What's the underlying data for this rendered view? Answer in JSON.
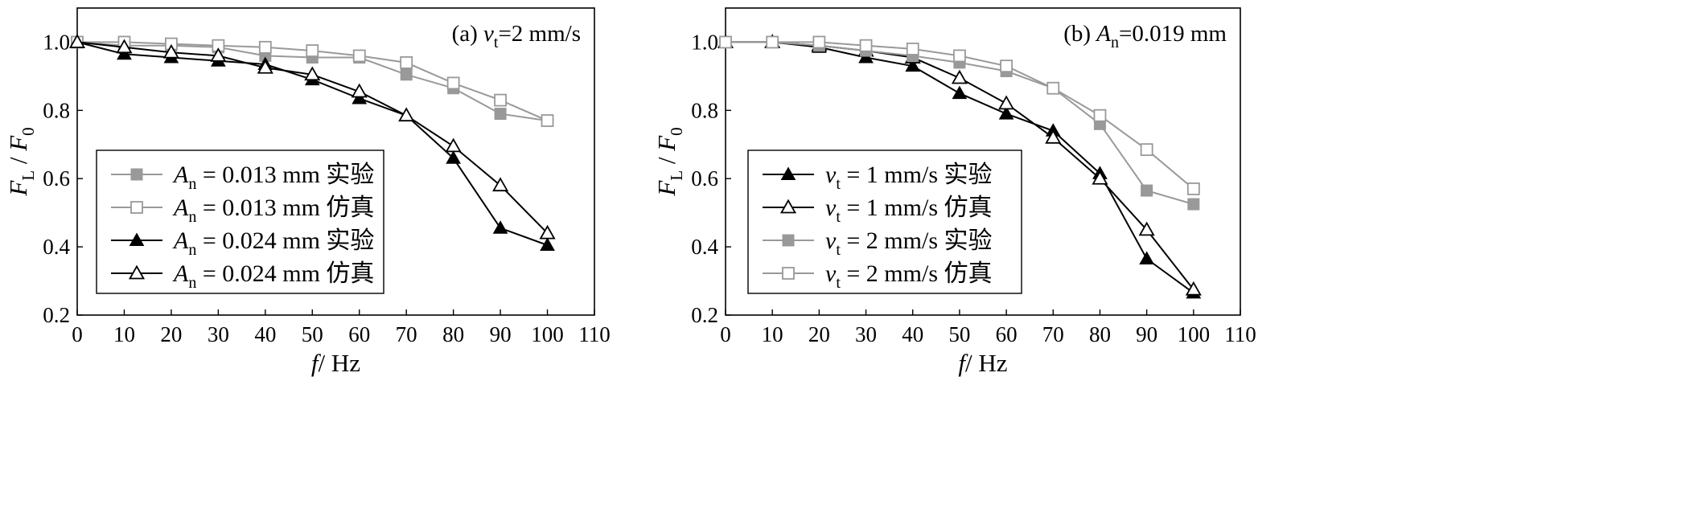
{
  "chart_data": [
    {
      "type": "line",
      "panel_label": {
        "prefix": "(a) ",
        "var": "v",
        "sub": "t",
        "rest": "=2 mm/s"
      },
      "xlabel": {
        "var": "f",
        "rest": "/ Hz"
      },
      "ylabel": {
        "var": "F",
        "sub": "L",
        "sep": " / ",
        "var2": "F",
        "sub2": "0"
      },
      "xlim": [
        0,
        110
      ],
      "ylim": [
        0.2,
        1.1
      ],
      "xticks": [
        0,
        10,
        20,
        30,
        40,
        50,
        60,
        70,
        80,
        90,
        100,
        110
      ],
      "xtick_labels": [
        "0",
        "10",
        "20",
        "30",
        "40",
        "50",
        "60",
        "70",
        "80",
        "90",
        "100",
        "110"
      ],
      "yticks": [
        0.2,
        0.4,
        0.6,
        0.8,
        1.0
      ],
      "ytick_labels": [
        "0.2",
        "0.4",
        "0.6",
        "0.8",
        "1.0"
      ],
      "grid": false,
      "legend_position": "bottom-left",
      "series": [
        {
          "legend": {
            "var": "A",
            "sub": "n",
            "rest": " = 0.013 mm 实验"
          },
          "color": "#999999",
          "marker": "filled-square",
          "x": [
            0,
            10,
            20,
            30,
            40,
            50,
            60,
            70,
            80,
            90,
            100
          ],
          "y": [
            1.0,
            0.99,
            0.99,
            0.985,
            0.96,
            0.955,
            0.955,
            0.905,
            0.865,
            0.79,
            0.77
          ]
        },
        {
          "legend": {
            "var": "A",
            "sub": "n",
            "rest": " = 0.013 mm 仿真"
          },
          "color": "#999999",
          "marker": "open-square",
          "x": [
            0,
            10,
            20,
            30,
            40,
            50,
            60,
            70,
            80,
            90,
            100
          ],
          "y": [
            1.0,
            1.0,
            0.995,
            0.99,
            0.985,
            0.975,
            0.96,
            0.94,
            0.88,
            0.83,
            0.77
          ]
        },
        {
          "legend": {
            "var": "A",
            "sub": "n",
            "rest": " = 0.024 mm 实验"
          },
          "color": "#000000",
          "marker": "filled-triangle",
          "x": [
            0,
            10,
            20,
            30,
            40,
            50,
            60,
            70,
            80,
            90,
            100
          ],
          "y": [
            1.0,
            0.965,
            0.955,
            0.945,
            0.935,
            0.89,
            0.835,
            0.785,
            0.66,
            0.455,
            0.405
          ]
        },
        {
          "legend": {
            "var": "A",
            "sub": "n",
            "rest": " = 0.024 mm 仿真"
          },
          "color": "#000000",
          "marker": "open-triangle",
          "x": [
            0,
            10,
            20,
            30,
            40,
            50,
            60,
            70,
            80,
            90,
            100
          ],
          "y": [
            1.0,
            0.985,
            0.97,
            0.96,
            0.925,
            0.905,
            0.855,
            0.785,
            0.695,
            0.58,
            0.44
          ]
        }
      ]
    },
    {
      "type": "line",
      "panel_label": {
        "prefix": "(b) ",
        "var": "A",
        "sub": "n",
        "rest": "=0.019 mm"
      },
      "xlabel": {
        "var": "f",
        "rest": "/ Hz"
      },
      "ylabel": {
        "var": "F",
        "sub": "L",
        "sep": " / ",
        "var2": "F",
        "sub2": "0"
      },
      "xlim": [
        0,
        110
      ],
      "ylim": [
        0.2,
        1.1
      ],
      "xticks": [
        0,
        10,
        20,
        30,
        40,
        50,
        60,
        70,
        80,
        90,
        100,
        110
      ],
      "xtick_labels": [
        "0",
        "10",
        "20",
        "30",
        "40",
        "50",
        "60",
        "70",
        "80",
        "90",
        "100",
        "110"
      ],
      "yticks": [
        0.2,
        0.4,
        0.6,
        0.8,
        1.0
      ],
      "ytick_labels": [
        "0.2",
        "0.4",
        "0.6",
        "0.8",
        "1.0"
      ],
      "grid": false,
      "legend_position": "bottom-left",
      "series": [
        {
          "legend": {
            "var": "v",
            "sub": "t",
            "rest": " = 1 mm/s 实验"
          },
          "color": "#000000",
          "marker": "filled-triangle",
          "x": [
            0,
            10,
            20,
            30,
            40,
            50,
            60,
            70,
            80,
            90,
            100
          ],
          "y": [
            1.0,
            1.0,
            0.985,
            0.955,
            0.93,
            0.85,
            0.79,
            0.74,
            0.615,
            0.365,
            0.265
          ]
        },
        {
          "legend": {
            "var": "v",
            "sub": "t",
            "rest": " = 1 mm/s 仿真"
          },
          "color": "#000000",
          "marker": "open-triangle",
          "x": [
            0,
            10,
            20,
            30,
            40,
            50,
            60,
            70,
            80,
            90,
            100
          ],
          "y": [
            1.0,
            1.0,
            0.99,
            0.975,
            0.955,
            0.895,
            0.82,
            0.72,
            0.6,
            0.45,
            0.275
          ]
        },
        {
          "legend": {
            "var": "v",
            "sub": "t",
            "rest": " = 2 mm/s 实验"
          },
          "color": "#999999",
          "marker": "filled-square",
          "x": [
            0,
            10,
            20,
            30,
            40,
            50,
            60,
            70,
            80,
            90,
            100
          ],
          "y": [
            1.0,
            1.0,
            0.99,
            0.975,
            0.96,
            0.94,
            0.915,
            0.865,
            0.76,
            0.565,
            0.525
          ]
        },
        {
          "legend": {
            "var": "v",
            "sub": "t",
            "rest": " = 2 mm/s 仿真"
          },
          "color": "#999999",
          "marker": "open-square",
          "x": [
            0,
            10,
            20,
            30,
            40,
            50,
            60,
            70,
            80,
            90,
            100
          ],
          "y": [
            1.0,
            1.0,
            1.0,
            0.99,
            0.98,
            0.96,
            0.93,
            0.865,
            0.785,
            0.685,
            0.57
          ]
        }
      ]
    }
  ]
}
